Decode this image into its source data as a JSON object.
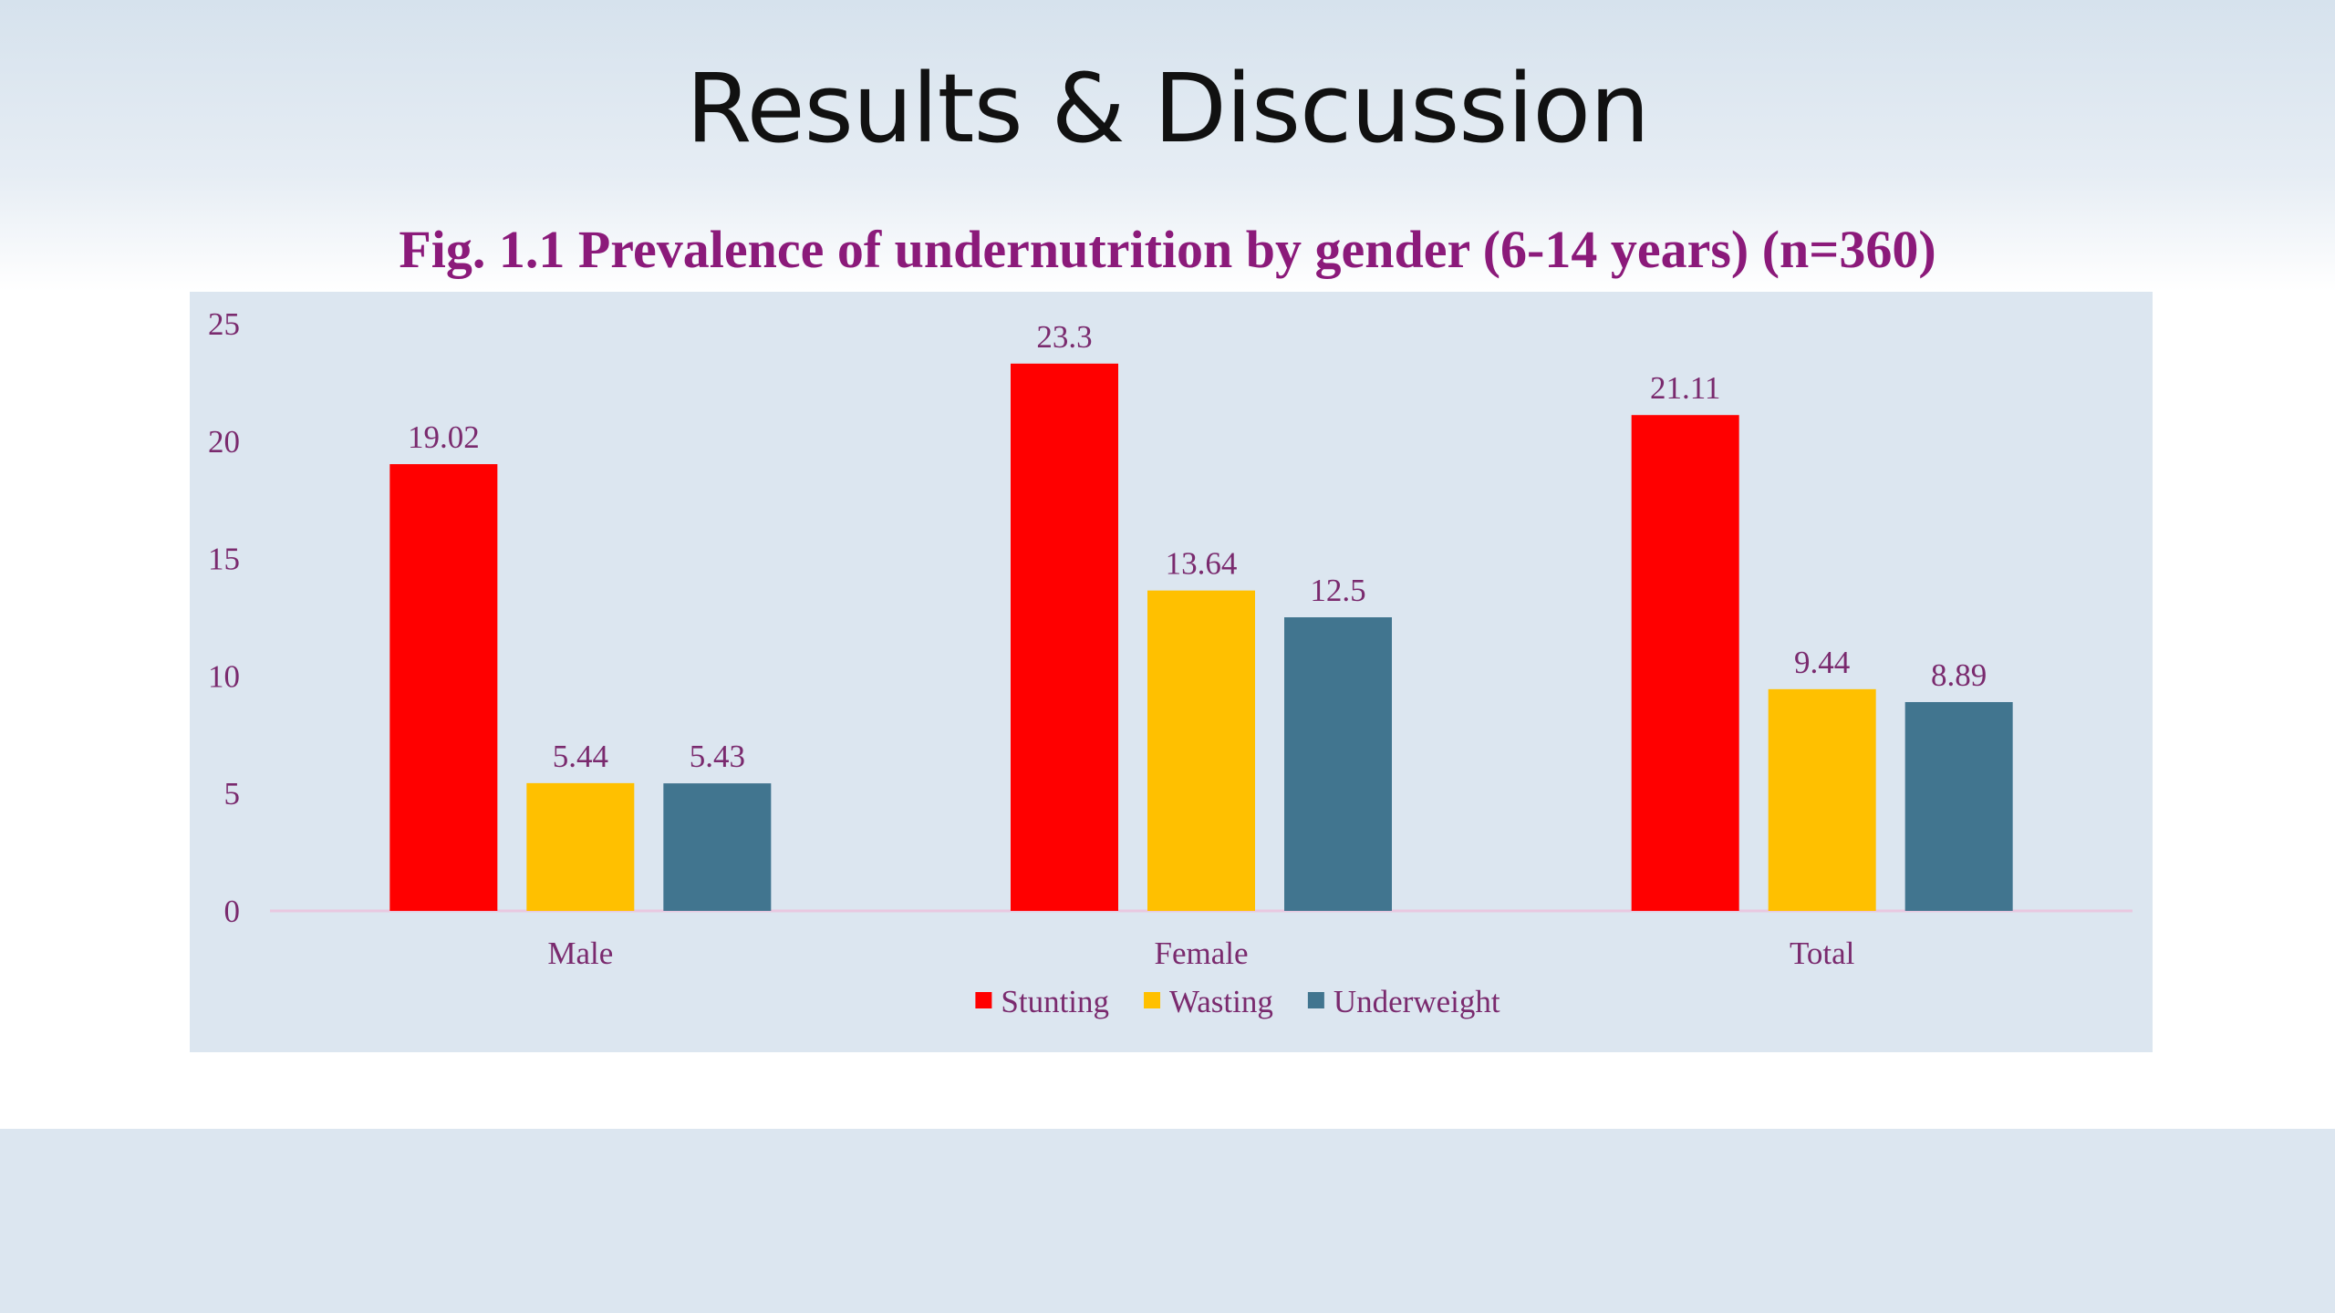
{
  "slide": {
    "title": "Results & Discussion"
  },
  "chart_data": {
    "type": "bar",
    "title": "Fig. 1.1 Prevalence of undernutrition by gender (6-14 years) (n=360)",
    "xlabel": "",
    "ylabel": "",
    "categories": [
      "Male",
      "Female",
      "Total"
    ],
    "series": [
      {
        "name": "Stunting",
        "values": [
          19.02,
          23.3,
          21.11
        ],
        "color": "#ff0000"
      },
      {
        "name": "Wasting",
        "values": [
          5.44,
          13.64,
          9.44
        ],
        "color": "#ffc000"
      },
      {
        "name": "Underweight",
        "values": [
          5.43,
          12.5,
          8.89
        ],
        "color": "#41758f"
      }
    ],
    "ylim": [
      0,
      25
    ],
    "yticks": [
      0,
      5,
      10,
      15,
      20,
      25
    ],
    "data_labels": true,
    "grid": false,
    "legend": "bottom",
    "colors": {
      "text": "#7a2a6e",
      "background": "#dce6f0",
      "axis_line": "#e9c8e0"
    }
  }
}
